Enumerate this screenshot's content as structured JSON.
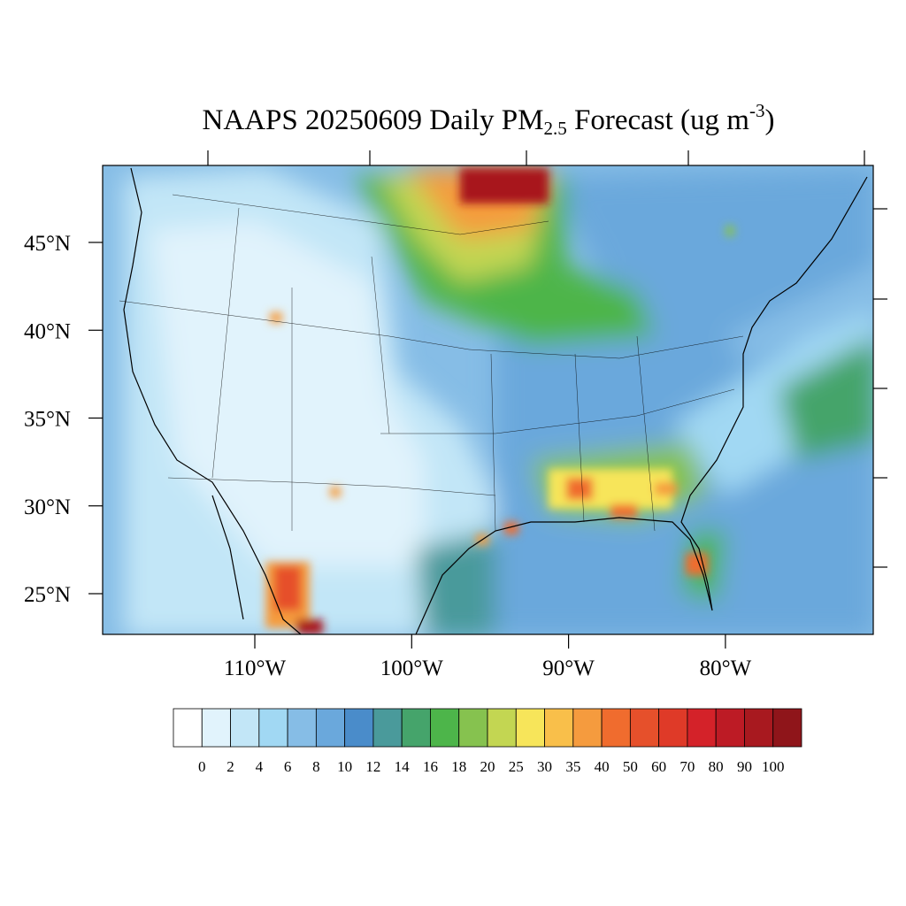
{
  "title": {
    "main": "NAAPS 20250609 Daily PM",
    "subscript": "2.5",
    "middle": " Forecast (ug m",
    "superscript": "-3",
    "end": ")"
  },
  "map": {
    "lat_ticks": [
      {
        "value": 45,
        "label": "45°N"
      },
      {
        "value": 40,
        "label": "40°N"
      },
      {
        "value": 35,
        "label": "35°N"
      },
      {
        "value": 30,
        "label": "30°N"
      },
      {
        "value": 25,
        "label": "25°N"
      }
    ],
    "lon_ticks": [
      {
        "value": 110,
        "label": "110°W"
      },
      {
        "value": 100,
        "label": "100°W"
      },
      {
        "value": 90,
        "label": "90°W"
      },
      {
        "value": 80,
        "label": "80°W"
      }
    ]
  },
  "colorbar": {
    "levels": [
      0,
      2,
      4,
      6,
      8,
      10,
      12,
      14,
      16,
      18,
      20,
      25,
      30,
      35,
      40,
      50,
      60,
      70,
      80,
      90,
      100
    ],
    "colors": [
      "#ffffff",
      "#e1f3fc",
      "#c2e6f7",
      "#a1d8f3",
      "#86bde6",
      "#6aa8dc",
      "#4a8cca",
      "#4a9a9b",
      "#45a46b",
      "#4db54a",
      "#86c24f",
      "#c3d652",
      "#f7e55a",
      "#f9bf4a",
      "#f59b3e",
      "#f06c2e",
      "#e6502b",
      "#df3a28",
      "#d42229",
      "#bd1b25",
      "#a8191f",
      "#8f151a"
    ]
  }
}
